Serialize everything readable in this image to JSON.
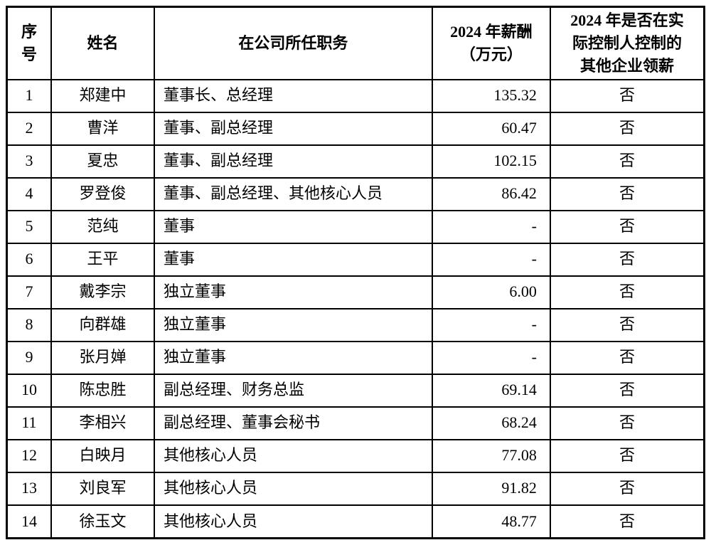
{
  "colors": {
    "background": "#ffffff",
    "border": "#000000",
    "text": "#000000"
  },
  "table": {
    "headers": {
      "seq": "序\n号",
      "name": "姓名",
      "position": "在公司所任职务",
      "salary": "2024 年薪酬\n（万元）",
      "other": "2024 年是否在实\n际控制人控制的\n其他企业领薪"
    },
    "rows": [
      {
        "seq": "1",
        "name": "郑建中",
        "position": "董事长、总经理",
        "salary": "135.32",
        "other": "否"
      },
      {
        "seq": "2",
        "name": "曹洋",
        "position": "董事、副总经理",
        "salary": "60.47",
        "other": "否"
      },
      {
        "seq": "3",
        "name": "夏忠",
        "position": "董事、副总经理",
        "salary": "102.15",
        "other": "否"
      },
      {
        "seq": "4",
        "name": "罗登俊",
        "position": "董事、副总经理、其他核心人员",
        "salary": "86.42",
        "other": "否"
      },
      {
        "seq": "5",
        "name": "范纯",
        "position": "董事",
        "salary": "-",
        "other": "否"
      },
      {
        "seq": "6",
        "name": "王平",
        "position": "董事",
        "salary": "-",
        "other": "否"
      },
      {
        "seq": "7",
        "name": "戴李宗",
        "position": "独立董事",
        "salary": "6.00",
        "other": "否"
      },
      {
        "seq": "8",
        "name": "向群雄",
        "position": "独立董事",
        "salary": "-",
        "other": "否"
      },
      {
        "seq": "9",
        "name": "张月婵",
        "position": "独立董事",
        "salary": "-",
        "other": "否"
      },
      {
        "seq": "10",
        "name": "陈忠胜",
        "position": "副总经理、财务总监",
        "salary": "69.14",
        "other": "否"
      },
      {
        "seq": "11",
        "name": "李相兴",
        "position": "副总经理、董事会秘书",
        "salary": "68.24",
        "other": "否"
      },
      {
        "seq": "12",
        "name": "白映月",
        "position": "其他核心人员",
        "salary": "77.08",
        "other": "否"
      },
      {
        "seq": "13",
        "name": "刘良军",
        "position": "其他核心人员",
        "salary": "91.82",
        "other": "否"
      },
      {
        "seq": "14",
        "name": "徐玉文",
        "position": "其他核心人员",
        "salary": "48.77",
        "other": "否"
      }
    ]
  }
}
